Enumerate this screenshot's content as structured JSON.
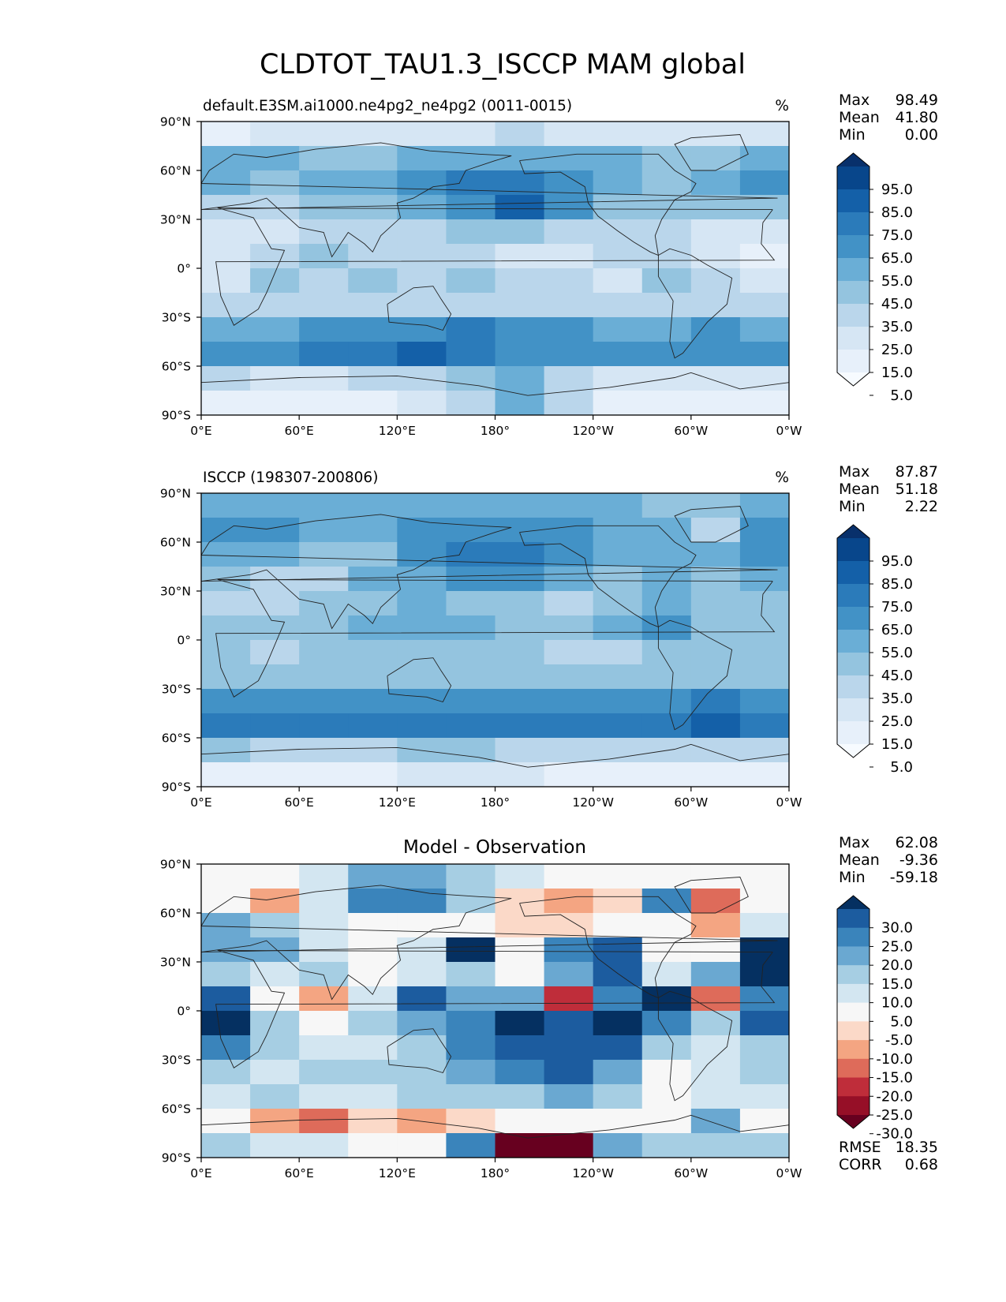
{
  "figure_title": "CLDTOT_TAU1.3_ISCCP MAM global",
  "chart_data": [
    {
      "type": "heatmap",
      "title": "default.E3SM.ai1000.ne4pg2_ne4pg2 (0011-0015)",
      "units": "%",
      "xticks": [
        "0°E",
        "60°E",
        "120°E",
        "180°",
        "120°W",
        "60°W",
        "0°W"
      ],
      "yticks": [
        "90°N",
        "60°N",
        "30°N",
        "0°",
        "30°S",
        "60°S",
        "90°S"
      ],
      "xlim": [
        0,
        360
      ],
      "ylim": [
        -90,
        90
      ],
      "stats": [
        [
          "Max",
          "98.49"
        ],
        [
          "Mean",
          "41.80"
        ],
        [
          "Min",
          "0.00"
        ]
      ],
      "colorbar": {
        "labels": [
          "95.0",
          "85.0",
          "75.0",
          "65.0",
          "55.0",
          "45.0",
          "35.0",
          "25.0",
          "15.0",
          "5.0"
        ],
        "colors": [
          "#08306b",
          "#08468b",
          "#1460a8",
          "#2b7bba",
          "#4292c6",
          "#6aaed6",
          "#94c4df",
          "#bad6eb",
          "#d6e6f4",
          "#e7f0fa",
          "#f7fbff"
        ],
        "extend": "both"
      },
      "field": [
        [
          1,
          2,
          2,
          2,
          2,
          2,
          3,
          2,
          2,
          2,
          2,
          2
        ],
        [
          5,
          5,
          4,
          4,
          5,
          5,
          5,
          5,
          5,
          4,
          4,
          5
        ],
        [
          5,
          4,
          5,
          5,
          6,
          7,
          7,
          6,
          5,
          4,
          5,
          6
        ],
        [
          3,
          3,
          4,
          4,
          5,
          6,
          8,
          6,
          4,
          4,
          4,
          4
        ],
        [
          2,
          2,
          3,
          3,
          3,
          4,
          4,
          3,
          3,
          3,
          2,
          2
        ],
        [
          2,
          3,
          4,
          3,
          3,
          3,
          2,
          2,
          3,
          3,
          2,
          1
        ],
        [
          2,
          4,
          3,
          4,
          3,
          4,
          3,
          3,
          2,
          4,
          3,
          2
        ],
        [
          3,
          3,
          3,
          3,
          3,
          3,
          3,
          3,
          3,
          3,
          3,
          3
        ],
        [
          5,
          5,
          6,
          6,
          6,
          7,
          6,
          6,
          5,
          5,
          6,
          5
        ],
        [
          6,
          6,
          7,
          7,
          8,
          7,
          6,
          6,
          6,
          6,
          6,
          6
        ],
        [
          3,
          2,
          2,
          3,
          3,
          4,
          5,
          3,
          2,
          2,
          2,
          2
        ],
        [
          1,
          1,
          1,
          1,
          2,
          3,
          5,
          3,
          1,
          1,
          1,
          1
        ]
      ]
    },
    {
      "type": "heatmap",
      "title": "ISCCP (198307-200806)",
      "units": "%",
      "xticks": [
        "0°E",
        "60°E",
        "120°E",
        "180°",
        "120°W",
        "60°W",
        "0°W"
      ],
      "yticks": [
        "90°N",
        "60°N",
        "30°N",
        "0°",
        "30°S",
        "60°S",
        "90°S"
      ],
      "xlim": [
        0,
        360
      ],
      "ylim": [
        -90,
        90
      ],
      "stats": [
        [
          "Max",
          "87.87"
        ],
        [
          "Mean",
          "51.18"
        ],
        [
          "Min",
          "2.22"
        ]
      ],
      "colorbar": {
        "labels": [
          "95.0",
          "85.0",
          "75.0",
          "65.0",
          "55.0",
          "45.0",
          "35.0",
          "25.0",
          "15.0",
          "5.0"
        ],
        "colors": [
          "#08306b",
          "#08468b",
          "#1460a8",
          "#2b7bba",
          "#4292c6",
          "#6aaed6",
          "#94c4df",
          "#bad6eb",
          "#d6e6f4",
          "#e7f0fa",
          "#f7fbff"
        ],
        "extend": "both"
      },
      "field": [
        [
          5,
          5,
          5,
          5,
          5,
          5,
          5,
          5,
          5,
          4,
          4,
          5
        ],
        [
          6,
          6,
          5,
          5,
          6,
          6,
          6,
          6,
          5,
          5,
          3,
          6
        ],
        [
          5,
          5,
          4,
          4,
          6,
          7,
          7,
          6,
          5,
          5,
          5,
          6
        ],
        [
          4,
          3,
          3,
          5,
          5,
          6,
          6,
          5,
          4,
          5,
          4,
          5
        ],
        [
          3,
          3,
          4,
          4,
          5,
          4,
          4,
          3,
          4,
          5,
          4,
          4
        ],
        [
          4,
          4,
          4,
          5,
          5,
          5,
          4,
          4,
          5,
          6,
          4,
          4
        ],
        [
          4,
          3,
          4,
          4,
          4,
          4,
          4,
          3,
          3,
          4,
          4,
          4
        ],
        [
          4,
          4,
          4,
          4,
          4,
          4,
          4,
          4,
          4,
          4,
          4,
          4
        ],
        [
          6,
          6,
          6,
          6,
          6,
          6,
          6,
          6,
          6,
          6,
          7,
          6
        ],
        [
          7,
          7,
          7,
          7,
          7,
          7,
          7,
          7,
          7,
          7,
          8,
          7
        ],
        [
          4,
          3,
          3,
          3,
          4,
          4,
          3,
          3,
          3,
          3,
          3,
          3
        ],
        [
          1,
          1,
          1,
          1,
          2,
          2,
          2,
          1,
          1,
          1,
          1,
          1
        ]
      ]
    },
    {
      "type": "heatmap",
      "title": "Model - Observation",
      "units": "",
      "xticks": [
        "0°E",
        "60°E",
        "120°E",
        "180°",
        "120°W",
        "60°W",
        "0°W"
      ],
      "yticks": [
        "90°N",
        "60°N",
        "30°N",
        "0°",
        "30°S",
        "60°S",
        "90°S"
      ],
      "xlim": [
        0,
        360
      ],
      "ylim": [
        -90,
        90
      ],
      "stats": [
        [
          "Max",
          "62.08"
        ],
        [
          "Mean",
          "-9.36"
        ],
        [
          "Min",
          "-59.18"
        ]
      ],
      "bottom_stats": [
        [
          "RMSE",
          "18.35"
        ],
        [
          "CORR",
          "0.68"
        ]
      ],
      "colorbar": {
        "labels": [
          "30.0",
          "25.0",
          "20.0",
          "15.0",
          "10.0",
          "5.0",
          "-5.0",
          "-10.0",
          "-15.0",
          "-20.0",
          "-25.0",
          "-30.0"
        ],
        "colors": [
          "#053061",
          "#1c5c9f",
          "#3a84bb",
          "#6aa8d1",
          "#a6cee3",
          "#d3e6f1",
          "#f7f7f7",
          "#fbd9c8",
          "#f4a582",
          "#de6b5a",
          "#bf2d3a",
          "#960f27",
          "#67001f"
        ],
        "extend": "both"
      },
      "field": [
        [
          6,
          6,
          7,
          9,
          9,
          8,
          7,
          6,
          6,
          6,
          6,
          6
        ],
        [
          6,
          4,
          7,
          10,
          10,
          8,
          5,
          4,
          5,
          10,
          3,
          6
        ],
        [
          9,
          8,
          7,
          6,
          6,
          6,
          5,
          5,
          6,
          6,
          4,
          7
        ],
        [
          9,
          9,
          7,
          6,
          7,
          12,
          6,
          10,
          11,
          6,
          6,
          12
        ],
        [
          8,
          7,
          8,
          6,
          7,
          8,
          6,
          9,
          11,
          7,
          9,
          12
        ],
        [
          11,
          6,
          4,
          7,
          11,
          9,
          9,
          2,
          10,
          12,
          3,
          10
        ],
        [
          12,
          8,
          6,
          8,
          9,
          10,
          12,
          11,
          12,
          10,
          8,
          11
        ],
        [
          10,
          8,
          7,
          7,
          8,
          10,
          11,
          11,
          11,
          8,
          7,
          8
        ],
        [
          8,
          7,
          8,
          8,
          8,
          9,
          10,
          11,
          9,
          6,
          7,
          8
        ],
        [
          7,
          8,
          7,
          7,
          8,
          8,
          8,
          9,
          8,
          6,
          7,
          7
        ],
        [
          6,
          4,
          3,
          5,
          4,
          5,
          6,
          6,
          6,
          6,
          9,
          6
        ],
        [
          8,
          7,
          7,
          6,
          6,
          10,
          0,
          0,
          9,
          8,
          8,
          8
        ]
      ]
    }
  ]
}
